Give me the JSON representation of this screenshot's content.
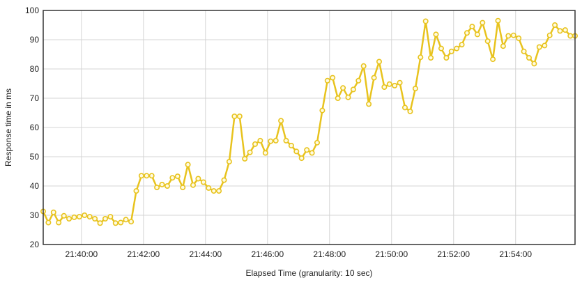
{
  "chart_data": {
    "type": "line",
    "xlabel": "Elapsed Time (granularity: 10 sec)",
    "ylabel": "Response time in ms",
    "x_tick_labels": [
      "21:40:00",
      "21:42:00",
      "21:44:00",
      "21:46:00",
      "21:48:00",
      "21:50:00",
      "21:52:00",
      "21:54:00"
    ],
    "y_ticks": [
      20,
      30,
      40,
      50,
      60,
      70,
      80,
      90,
      100
    ],
    "ylim": [
      20,
      100
    ],
    "xlim": [
      "21:38:46",
      "21:55:55"
    ],
    "grid": true,
    "legend": "none",
    "series_color": "#e8c31e",
    "marker_fill": "#fffbe0",
    "series": [
      {
        "x": [
          "21:38:46",
          "21:38:56",
          "21:39:06",
          "21:39:16",
          "21:39:26",
          "21:39:36",
          "21:39:46",
          "21:39:56",
          "21:40:06",
          "21:40:16",
          "21:40:26",
          "21:40:36",
          "21:40:46",
          "21:40:56",
          "21:41:06",
          "21:41:16",
          "21:41:26",
          "21:41:36",
          "21:41:46",
          "21:41:56",
          "21:42:06",
          "21:42:16",
          "21:42:26",
          "21:42:36",
          "21:42:46",
          "21:42:56",
          "21:43:06",
          "21:43:16",
          "21:43:26",
          "21:43:36",
          "21:43:46",
          "21:43:56",
          "21:44:06",
          "21:44:16",
          "21:44:26",
          "21:44:36",
          "21:44:46",
          "21:44:56",
          "21:45:06",
          "21:45:16",
          "21:45:26",
          "21:45:36",
          "21:45:46",
          "21:45:56",
          "21:46:06",
          "21:46:16",
          "21:46:26",
          "21:46:36",
          "21:46:46",
          "21:46:56",
          "21:47:06",
          "21:47:16",
          "21:47:26",
          "21:47:36",
          "21:47:46",
          "21:47:56",
          "21:48:06",
          "21:48:16",
          "21:48:26",
          "21:48:36",
          "21:48:46",
          "21:48:56",
          "21:49:06",
          "21:49:16",
          "21:49:26",
          "21:49:36",
          "21:49:46",
          "21:49:56",
          "21:50:06",
          "21:50:16",
          "21:50:26",
          "21:50:36",
          "21:50:46",
          "21:50:56",
          "21:51:06",
          "21:51:16",
          "21:51:26",
          "21:51:36",
          "21:51:46",
          "21:51:56",
          "21:52:06",
          "21:52:16",
          "21:52:26",
          "21:52:36",
          "21:52:46",
          "21:52:56",
          "21:53:06",
          "21:53:16",
          "21:53:26",
          "21:53:36",
          "21:53:46",
          "21:53:56",
          "21:54:06",
          "21:54:16",
          "21:54:26",
          "21:54:36",
          "21:54:46",
          "21:54:56",
          "21:55:06",
          "21:55:16",
          "21:55:26",
          "21:55:36",
          "21:55:46",
          "21:55:55"
        ],
        "y": [
          31.3,
          27.5,
          31.0,
          27.5,
          29.8,
          28.8,
          29.3,
          29.5,
          30.0,
          29.5,
          28.8,
          27.3,
          28.8,
          29.5,
          27.3,
          27.5,
          28.5,
          27.8,
          38.3,
          43.5,
          43.5,
          43.5,
          39.5,
          40.5,
          40.0,
          42.8,
          43.3,
          39.5,
          47.3,
          40.3,
          42.5,
          41.3,
          39.3,
          38.3,
          38.3,
          42.0,
          48.3,
          63.8,
          63.8,
          49.3,
          51.5,
          54.3,
          55.5,
          51.3,
          55.3,
          55.5,
          62.3,
          55.5,
          53.8,
          51.8,
          49.5,
          52.3,
          51.3,
          54.8,
          65.8,
          76.0,
          77.0,
          70.0,
          73.5,
          70.3,
          73.0,
          76.0,
          81.0,
          68.0,
          77.0,
          82.5,
          73.8,
          74.8,
          74.3,
          75.3,
          66.8,
          65.5,
          73.3,
          84.0,
          96.3,
          83.8,
          91.8,
          87.0,
          83.8,
          86.0,
          87.0,
          88.3,
          92.3,
          94.5,
          91.8,
          95.8,
          89.5,
          83.3,
          96.5,
          87.8,
          91.3,
          91.5,
          90.5,
          86.0,
          83.8,
          81.8,
          87.5,
          88.0,
          91.5,
          95.0,
          93.0,
          93.3,
          91.3,
          91.3
        ]
      }
    ]
  }
}
